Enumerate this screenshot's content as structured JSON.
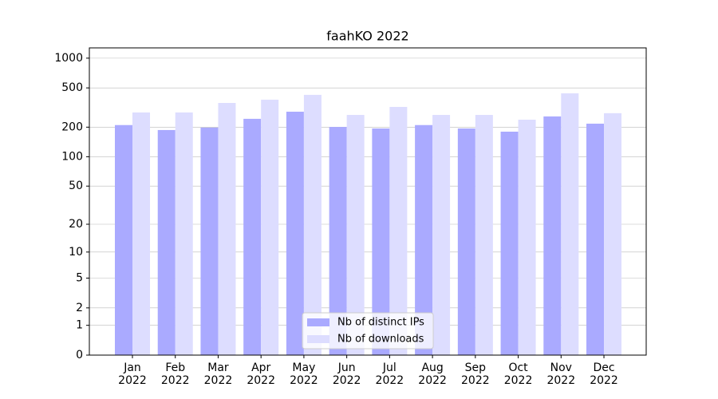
{
  "chart_data": {
    "type": "bar",
    "title": "faahKO 2022",
    "categories": [
      "Jan 2022",
      "Feb 2022",
      "Mar 2022",
      "Apr 2022",
      "May 2022",
      "Jun 2022",
      "Jul 2022",
      "Aug 2022",
      "Sep 2022",
      "Oct 2022",
      "Nov 2022",
      "Dec 2022"
    ],
    "series": [
      {
        "name": "Nb of distinct IPs",
        "color": "#aaaaff",
        "values": [
          210,
          187,
          198,
          243,
          287,
          201,
          194,
          210,
          194,
          180,
          257,
          217
        ]
      },
      {
        "name": "Nb of downloads",
        "color": "#ddddff",
        "values": [
          282,
          282,
          352,
          380,
          425,
          266,
          321,
          266,
          266,
          238,
          441,
          277
        ]
      }
    ],
    "y_scale": "symlog",
    "ylim": [
      0,
      1270
    ],
    "yticks": [
      0,
      1,
      2,
      5,
      10,
      20,
      50,
      100,
      200,
      500,
      1000
    ],
    "grid": true,
    "legend": "lower center"
  }
}
